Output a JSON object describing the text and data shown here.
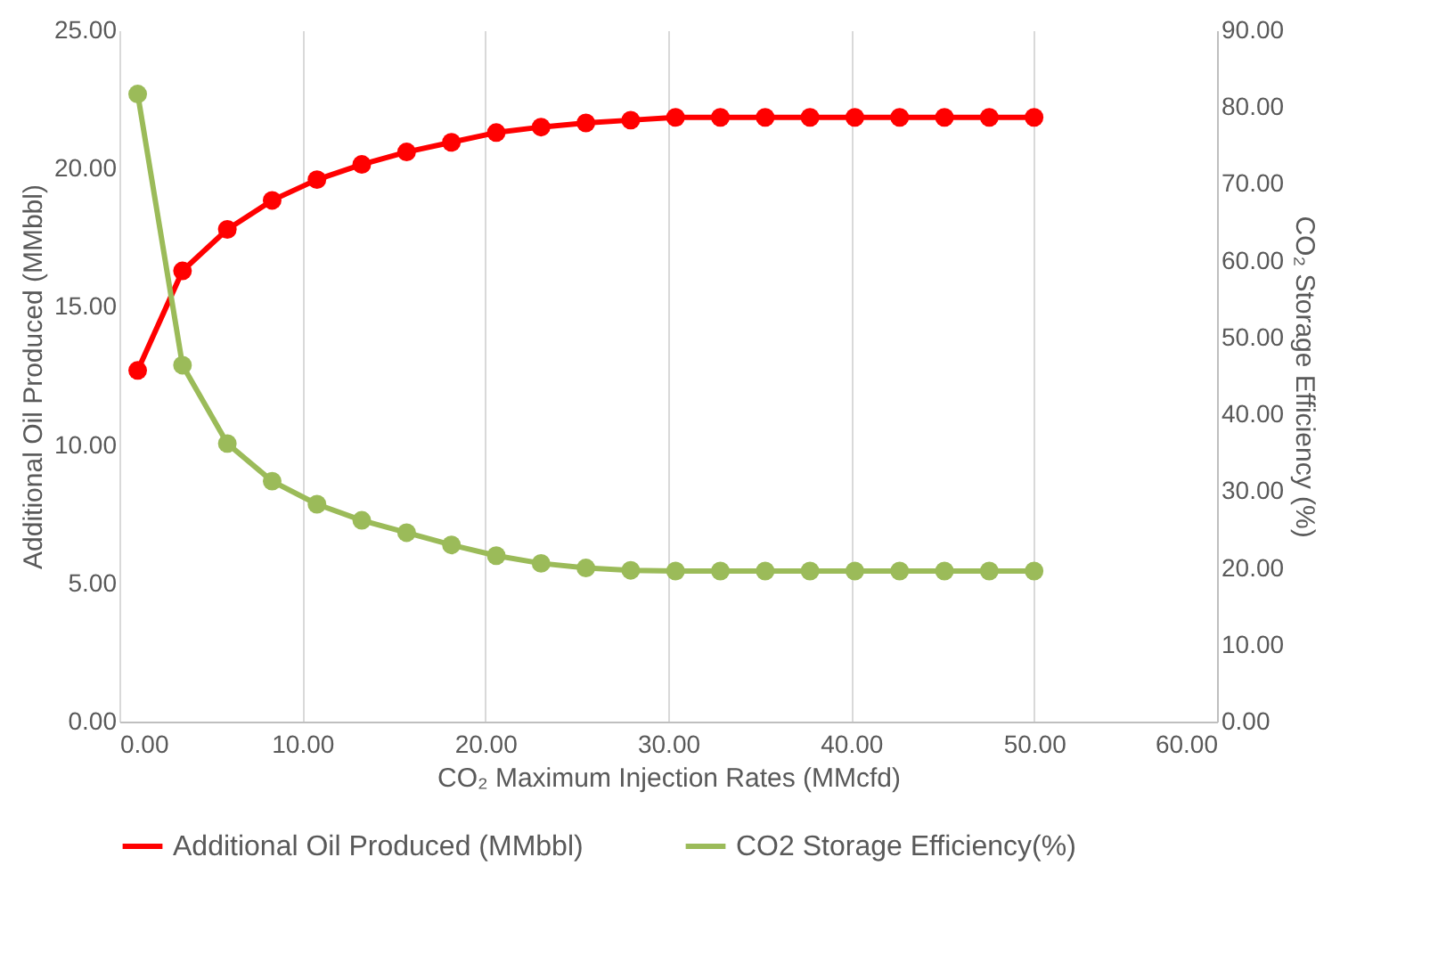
{
  "chart_data": {
    "type": "line",
    "xlabel": "CO₂ Maximum Injection Rates (MMcfd)",
    "ylabel": "Additional Oil Produced (MMbbl)",
    "y2label": "CO₂ Storage Efficiency (%)",
    "x": [
      1,
      3.45,
      5.9,
      8.35,
      10.8,
      13.25,
      15.7,
      18.15,
      20.6,
      23.05,
      25.5,
      27.95,
      30.4,
      32.85,
      35.3,
      37.75,
      40.2,
      42.65,
      45.1,
      47.55,
      50
    ],
    "series": [
      {
        "name": "Additional Oil Produced (MMbbl)",
        "color": "#ff0000",
        "values": [
          12.7,
          16.3,
          17.8,
          18.85,
          19.6,
          20.15,
          20.6,
          20.95,
          21.3,
          21.5,
          21.65,
          21.75,
          21.85,
          21.85,
          21.85,
          21.85,
          21.85,
          21.85,
          21.85,
          21.85,
          21.85
        ]
      },
      {
        "name": "CO2 Storage Efficiency(%)",
        "color": "#9bbb59",
        "axis": "y2",
        "values": [
          81.7,
          46.4,
          36.2,
          31.3,
          28.3,
          26.2,
          24.6,
          23.0,
          21.6,
          20.6,
          20.0,
          19.7,
          19.6,
          19.6,
          19.6,
          19.6,
          19.6,
          19.6,
          19.6,
          19.6,
          19.6
        ]
      }
    ],
    "xlim": [
      0,
      60
    ],
    "xticks": [
      {
        "value": 0,
        "label": "0.00"
      },
      {
        "value": 10,
        "label": "10.00"
      },
      {
        "value": 20,
        "label": "20.00"
      },
      {
        "value": 30,
        "label": "30.00"
      },
      {
        "value": 40,
        "label": "40.00"
      },
      {
        "value": 50,
        "label": "50.00"
      },
      {
        "value": 60,
        "label": "60.00"
      }
    ],
    "ylim": [
      0,
      25
    ],
    "yticks": [
      {
        "value": 0,
        "label": "0.00"
      },
      {
        "value": 5,
        "label": "5.00"
      },
      {
        "value": 10,
        "label": "10.00"
      },
      {
        "value": 15,
        "label": "15.00"
      },
      {
        "value": 20,
        "label": "20.00"
      },
      {
        "value": 25,
        "label": "25.00"
      }
    ],
    "y2lim": [
      0,
      90
    ],
    "y2ticks": [
      {
        "value": 0,
        "label": "0.00"
      },
      {
        "value": 10,
        "label": "10.00"
      },
      {
        "value": 20,
        "label": "20.00"
      },
      {
        "value": 30,
        "label": "30.00"
      },
      {
        "value": 40,
        "label": "40.00"
      },
      {
        "value": 50,
        "label": "50.00"
      },
      {
        "value": 60,
        "label": "60.00"
      },
      {
        "value": 70,
        "label": "70.00"
      },
      {
        "value": 80,
        "label": "80.00"
      },
      {
        "value": 90,
        "label": "90.00"
      }
    ],
    "grid": "x",
    "legend": "bottom",
    "marker": "circle",
    "line_style": "solid"
  }
}
